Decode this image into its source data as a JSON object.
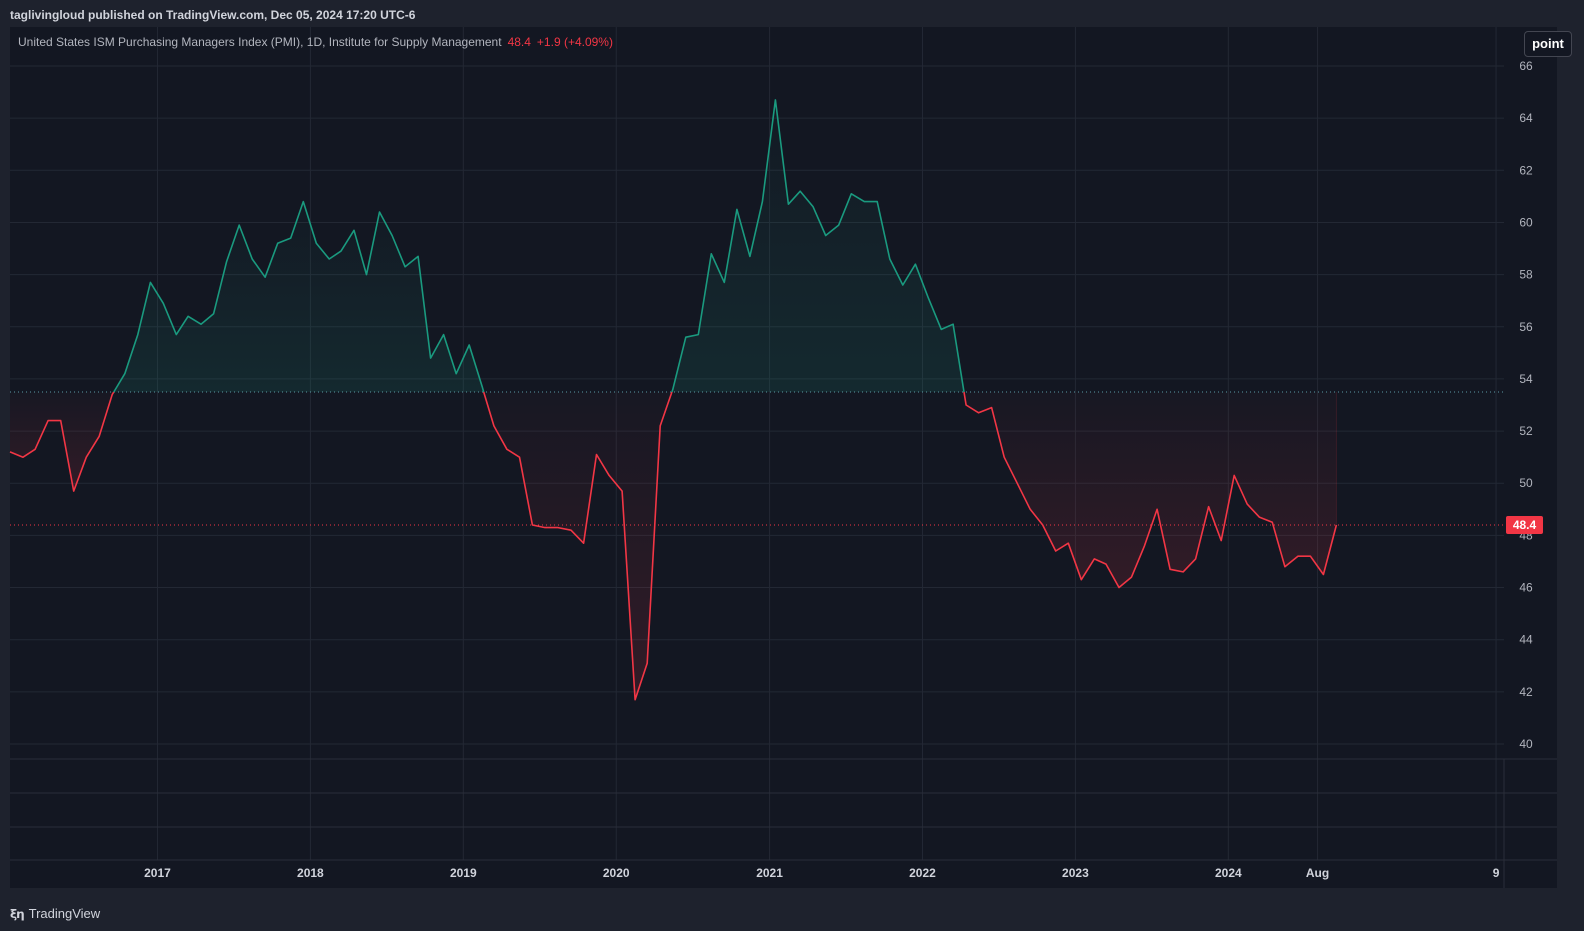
{
  "header": {
    "publish_text": "taglivingloud published on TradingView.com, Dec 05, 2024 17:20 UTC-6"
  },
  "legend": {
    "title": "United States ISM Purchasing Managers Index (PMI), 1D, Institute for Supply Management",
    "last_value": "48.4",
    "change": "+1.9 (+4.09%)"
  },
  "scale_button": {
    "label": "point"
  },
  "price_label": "48.4",
  "footer": {
    "brand": "TradingView",
    "logo": "tradingview-logo"
  },
  "colors": {
    "background": "#131722",
    "frame": "#1e222d",
    "grid": "#232834",
    "up": "#1a9a7f",
    "down": "#f23645",
    "up_fill": "#1a9a7f",
    "down_fill": "#f23645",
    "baseline": "#5b9aa6"
  },
  "chart_data": {
    "type": "area",
    "title": "United States ISM Purchasing Managers Index (PMI)",
    "baseline_value": 53.5,
    "last_value": 48.4,
    "ylim": [
      40,
      66
    ],
    "yticks": [
      40,
      42,
      44,
      46,
      48,
      50,
      52,
      54,
      56,
      58,
      60,
      62,
      64,
      66
    ],
    "xlim": [
      "2016-01-15",
      "2025-10-20"
    ],
    "xticks": [
      {
        "label": "2017",
        "date": "2017-01-01"
      },
      {
        "label": "2018",
        "date": "2018-01-01"
      },
      {
        "label": "2019",
        "date": "2019-01-01"
      },
      {
        "label": "2020",
        "date": "2020-01-01"
      },
      {
        "label": "2021",
        "date": "2021-01-01"
      },
      {
        "label": "2022",
        "date": "2022-01-01"
      },
      {
        "label": "2023",
        "date": "2023-01-01"
      },
      {
        "label": "2024",
        "date": "2024-01-01"
      },
      {
        "label": "Aug",
        "date": "2024-08-01"
      },
      {
        "label": "9",
        "date": "2025-10-01"
      }
    ],
    "grid": true,
    "series": [
      {
        "values": [
          [
            "2016-01-15",
            51.2
          ],
          [
            "2016-02-15",
            51.0
          ],
          [
            "2016-03-15",
            51.3
          ],
          [
            "2016-04-15",
            52.4
          ],
          [
            "2016-05-15",
            52.4
          ],
          [
            "2016-06-15",
            49.7
          ],
          [
            "2016-07-15",
            51.0
          ],
          [
            "2016-08-15",
            51.8
          ],
          [
            "2016-09-15",
            53.4
          ],
          [
            "2016-10-15",
            54.2
          ],
          [
            "2016-11-15",
            55.7
          ],
          [
            "2016-12-15",
            57.7
          ],
          [
            "2017-01-15",
            56.9
          ],
          [
            "2017-02-15",
            55.7
          ],
          [
            "2017-03-15",
            56.4
          ],
          [
            "2017-04-15",
            56.1
          ],
          [
            "2017-05-15",
            56.5
          ],
          [
            "2017-06-15",
            58.5
          ],
          [
            "2017-07-15",
            59.9
          ],
          [
            "2017-08-15",
            58.6
          ],
          [
            "2017-09-15",
            57.9
          ],
          [
            "2017-10-15",
            59.2
          ],
          [
            "2017-11-15",
            59.4
          ],
          [
            "2017-12-15",
            60.8
          ],
          [
            "2018-01-15",
            59.2
          ],
          [
            "2018-02-15",
            58.6
          ],
          [
            "2018-03-15",
            58.9
          ],
          [
            "2018-04-15",
            59.7
          ],
          [
            "2018-05-15",
            58.0
          ],
          [
            "2018-06-15",
            60.4
          ],
          [
            "2018-07-15",
            59.5
          ],
          [
            "2018-08-15",
            58.3
          ],
          [
            "2018-09-15",
            58.7
          ],
          [
            "2018-10-15",
            54.8
          ],
          [
            "2018-11-15",
            55.7
          ],
          [
            "2018-12-15",
            54.2
          ],
          [
            "2019-01-15",
            55.3
          ],
          [
            "2019-02-15",
            53.7
          ],
          [
            "2019-03-15",
            52.2
          ],
          [
            "2019-04-15",
            51.3
          ],
          [
            "2019-05-15",
            51.0
          ],
          [
            "2019-06-15",
            48.4
          ],
          [
            "2019-07-15",
            48.3
          ],
          [
            "2019-08-15",
            48.3
          ],
          [
            "2019-09-15",
            48.2
          ],
          [
            "2019-10-15",
            47.7
          ],
          [
            "2019-11-15",
            51.1
          ],
          [
            "2019-12-15",
            50.3
          ],
          [
            "2020-01-15",
            49.7
          ],
          [
            "2020-02-15",
            41.7
          ],
          [
            "2020-03-15",
            43.1
          ],
          [
            "2020-04-15",
            52.2
          ],
          [
            "2020-05-15",
            53.6
          ],
          [
            "2020-06-15",
            55.6
          ],
          [
            "2020-07-15",
            55.7
          ],
          [
            "2020-08-15",
            58.8
          ],
          [
            "2020-09-15",
            57.7
          ],
          [
            "2020-10-15",
            60.5
          ],
          [
            "2020-11-15",
            58.7
          ],
          [
            "2020-12-15",
            60.8
          ],
          [
            "2021-01-15",
            64.7
          ],
          [
            "2021-02-15",
            60.7
          ],
          [
            "2021-03-15",
            61.2
          ],
          [
            "2021-04-15",
            60.6
          ],
          [
            "2021-05-15",
            59.5
          ],
          [
            "2021-06-15",
            59.9
          ],
          [
            "2021-07-15",
            61.1
          ],
          [
            "2021-08-15",
            60.8
          ],
          [
            "2021-09-15",
            60.8
          ],
          [
            "2021-10-15",
            58.6
          ],
          [
            "2021-11-15",
            57.6
          ],
          [
            "2021-12-15",
            58.4
          ],
          [
            "2022-01-15",
            57.1
          ],
          [
            "2022-02-15",
            55.9
          ],
          [
            "2022-03-15",
            56.1
          ],
          [
            "2022-04-15",
            53.0
          ],
          [
            "2022-05-15",
            52.7
          ],
          [
            "2022-06-15",
            52.9
          ],
          [
            "2022-07-15",
            51.0
          ],
          [
            "2022-08-15",
            50.0
          ],
          [
            "2022-09-15",
            49.0
          ],
          [
            "2022-10-15",
            48.4
          ],
          [
            "2022-11-15",
            47.4
          ],
          [
            "2022-12-15",
            47.7
          ],
          [
            "2023-01-15",
            46.3
          ],
          [
            "2023-02-15",
            47.1
          ],
          [
            "2023-03-15",
            46.9
          ],
          [
            "2023-04-15",
            46.0
          ],
          [
            "2023-05-15",
            46.4
          ],
          [
            "2023-06-15",
            47.6
          ],
          [
            "2023-07-15",
            49.0
          ],
          [
            "2023-08-15",
            46.7
          ],
          [
            "2023-09-15",
            46.6
          ],
          [
            "2023-10-15",
            47.1
          ],
          [
            "2023-11-15",
            49.1
          ],
          [
            "2023-12-15",
            47.8
          ],
          [
            "2024-01-15",
            50.3
          ],
          [
            "2024-02-15",
            49.2
          ],
          [
            "2024-03-15",
            48.7
          ],
          [
            "2024-04-15",
            48.5
          ],
          [
            "2024-05-15",
            46.8
          ],
          [
            "2024-06-15",
            47.2
          ],
          [
            "2024-07-15",
            47.2
          ],
          [
            "2024-08-15",
            46.5
          ],
          [
            "2024-09-15",
            48.4
          ]
        ]
      }
    ]
  }
}
